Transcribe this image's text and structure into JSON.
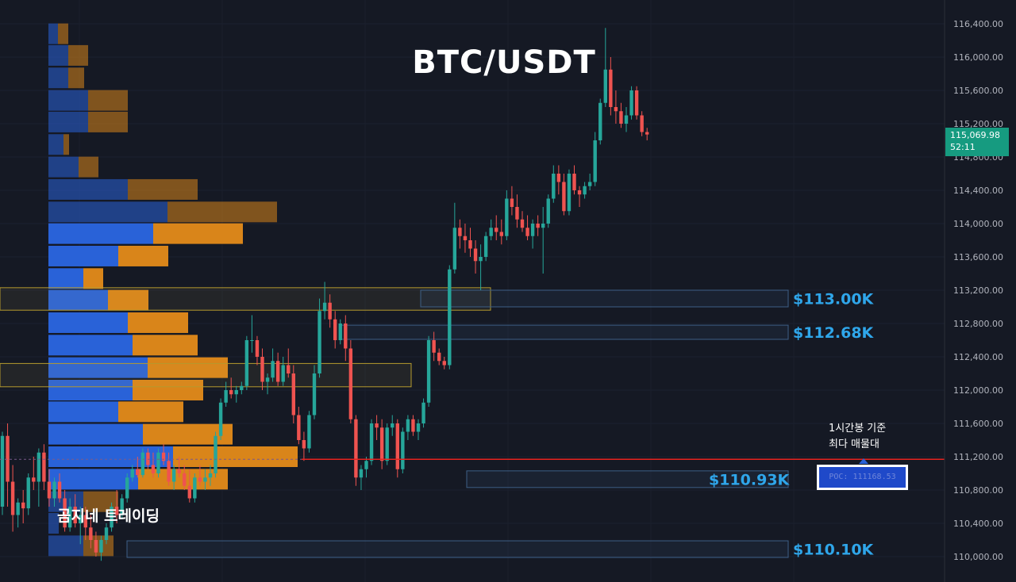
{
  "title": "BTC/USDT",
  "watermark": "곰지네 트레이딩",
  "note": {
    "line1": "1시간봉 기준",
    "line2": "최다 매물대"
  },
  "poc_label": "POC: 111168.53",
  "current_price": {
    "price": "115,069.98",
    "timer": "52:11",
    "color": "#169b80"
  },
  "colors": {
    "up": "#26a69a",
    "down": "#ef5350",
    "level_text": "#2fa6ea",
    "poc_line": "#e8221e",
    "vol_buy": "#2962d8",
    "vol_sell": "#d9851a"
  },
  "chart_data": {
    "type": "candlestick",
    "symbol": "BTC/USDT",
    "timeframe": "1h",
    "ylim": [
      109800,
      116600
    ],
    "y_ticks": [
      "116,400.00",
      "116,000.00",
      "115,600.00",
      "115,200.00",
      "114,800.00",
      "114,400.00",
      "114,000.00",
      "113,600.00",
      "113,200.00",
      "112,800.00",
      "112,400.00",
      "112,000.00",
      "111,600.00",
      "111,200.00",
      "110,800.00",
      "110,400.00",
      "110,000.00"
    ],
    "y_tick_values": [
      116400,
      116000,
      115600,
      115200,
      114800,
      114400,
      114000,
      113600,
      113200,
      112800,
      112400,
      112000,
      111600,
      111200,
      110800,
      110400,
      110000
    ],
    "poc_price": 111168.53,
    "key_levels": [
      {
        "label": "$113.00K",
        "low": 113000,
        "high": 113200
      },
      {
        "label": "$112.68K",
        "low": 112610,
        "high": 112780
      },
      {
        "label": "$110.93K",
        "low": 110830,
        "high": 111030
      },
      {
        "label": "$110.10K",
        "low": 109990,
        "high": 110190
      }
    ],
    "supply_zones": [
      {
        "low": 112960,
        "high": 113230
      },
      {
        "low": 112040,
        "high": 112320
      }
    ],
    "volume_profile": [
      {
        "price": 116280,
        "buy": 12,
        "sell": 13,
        "highlight": false
      },
      {
        "price": 116020,
        "buy": 25,
        "sell": 25,
        "highlight": false
      },
      {
        "price": 115750,
        "buy": 25,
        "sell": 20,
        "highlight": false
      },
      {
        "price": 115480,
        "buy": 50,
        "sell": 50,
        "highlight": false
      },
      {
        "price": 115220,
        "buy": 50,
        "sell": 50,
        "highlight": false
      },
      {
        "price": 114950,
        "buy": 19,
        "sell": 7,
        "highlight": false
      },
      {
        "price": 114680,
        "buy": 38,
        "sell": 25,
        "highlight": false
      },
      {
        "price": 114410,
        "buy": 100,
        "sell": 88,
        "highlight": false
      },
      {
        "price": 114140,
        "buy": 150,
        "sell": 138,
        "highlight": false
      },
      {
        "price": 113880,
        "buy": 132,
        "sell": 113,
        "highlight": true
      },
      {
        "price": 113610,
        "buy": 88,
        "sell": 63,
        "highlight": true
      },
      {
        "price": 113340,
        "buy": 44,
        "sell": 25,
        "highlight": true
      },
      {
        "price": 113080,
        "buy": 75,
        "sell": 51,
        "highlight": true
      },
      {
        "price": 112810,
        "buy": 100,
        "sell": 76,
        "highlight": true
      },
      {
        "price": 112540,
        "buy": 106,
        "sell": 82,
        "highlight": true
      },
      {
        "price": 112270,
        "buy": 125,
        "sell": 101,
        "highlight": true
      },
      {
        "price": 112000,
        "buy": 106,
        "sell": 89,
        "highlight": true
      },
      {
        "price": 111740,
        "buy": 88,
        "sell": 82,
        "highlight": true
      },
      {
        "price": 111470,
        "buy": 119,
        "sell": 113,
        "highlight": true
      },
      {
        "price": 111200,
        "buy": 157,
        "sell": 157,
        "highlight": true
      },
      {
        "price": 110930,
        "buy": 113,
        "sell": 113,
        "highlight": true
      },
      {
        "price": 110660,
        "buy": 44,
        "sell": 44,
        "highlight": false
      },
      {
        "price": 110400,
        "buy": 13,
        "sell": 0,
        "highlight": false
      },
      {
        "price": 110130,
        "buy": 44,
        "sell": 38,
        "highlight": false
      }
    ],
    "candles": [
      [
        110600,
        111500,
        110500,
        111450
      ],
      [
        111450,
        111600,
        110600,
        110900
      ],
      [
        110900,
        111100,
        110300,
        110500
      ],
      [
        110500,
        110700,
        110350,
        110650
      ],
      [
        110650,
        110800,
        110400,
        110580
      ],
      [
        110580,
        111000,
        110500,
        110950
      ],
      [
        110950,
        111200,
        110800,
        110900
      ],
      [
        110900,
        111300,
        110600,
        111250
      ],
      [
        111250,
        111350,
        110800,
        110900
      ],
      [
        110900,
        111050,
        110600,
        110700
      ],
      [
        110700,
        110950,
        110600,
        110900
      ],
      [
        110900,
        111000,
        110650,
        110700
      ],
      [
        110700,
        110800,
        110300,
        110350
      ],
      [
        110350,
        110700,
        110300,
        110600
      ],
      [
        110600,
        110750,
        110350,
        110400
      ],
      [
        110400,
        110600,
        110150,
        110500
      ],
      [
        110500,
        110600,
        110200,
        110350
      ],
      [
        110350,
        110500,
        110100,
        110200
      ],
      [
        110200,
        110300,
        110000,
        110050
      ],
      [
        110050,
        110250,
        109950,
        110200
      ],
      [
        110200,
        110400,
        110150,
        110350
      ],
      [
        110350,
        110650,
        110300,
        110600
      ],
      [
        110600,
        110800,
        110400,
        110500
      ],
      [
        110500,
        110750,
        110450,
        110700
      ],
      [
        110700,
        111000,
        110650,
        110950
      ],
      [
        110950,
        111100,
        110900,
        111050
      ],
      [
        111050,
        111200,
        110950,
        110980
      ],
      [
        110980,
        111300,
        110950,
        111250
      ],
      [
        111250,
        111300,
        111050,
        111100
      ],
      [
        111100,
        111250,
        110950,
        111000
      ],
      [
        111000,
        111300,
        110950,
        111250
      ],
      [
        111250,
        111350,
        111100,
        111150
      ],
      [
        111150,
        111250,
        110850,
        110900
      ],
      [
        110900,
        111100,
        110800,
        111050
      ],
      [
        111050,
        111200,
        110950,
        111000
      ],
      [
        111000,
        111100,
        110800,
        110850
      ],
      [
        110850,
        111050,
        110650,
        110700
      ],
      [
        110700,
        111000,
        110650,
        110950
      ],
      [
        110950,
        111100,
        110850,
        110900
      ],
      [
        110900,
        111050,
        110800,
        110950
      ],
      [
        110950,
        111100,
        110850,
        111000
      ],
      [
        111000,
        111500,
        110950,
        111450
      ],
      [
        111450,
        111900,
        111400,
        111850
      ],
      [
        111850,
        112100,
        111800,
        112000
      ],
      [
        112000,
        112150,
        111900,
        111950
      ],
      [
        111950,
        112050,
        111850,
        112000
      ],
      [
        112000,
        112100,
        111950,
        112050
      ],
      [
        112050,
        112650,
        112000,
        112600
      ],
      [
        112600,
        112900,
        112450,
        112600
      ],
      [
        112600,
        112650,
        112300,
        112400
      ],
      [
        112400,
        112500,
        112000,
        112100
      ],
      [
        112100,
        112200,
        111950,
        112150
      ],
      [
        112150,
        112500,
        112100,
        112350
      ],
      [
        112350,
        112450,
        112050,
        112100
      ],
      [
        112100,
        112400,
        112050,
        112300
      ],
      [
        112300,
        112500,
        112150,
        112200
      ],
      [
        112200,
        112300,
        111600,
        111700
      ],
      [
        111700,
        111800,
        111350,
        111400
      ],
      [
        111400,
        111500,
        111150,
        111300
      ],
      [
        111300,
        111750,
        111250,
        111700
      ],
      [
        111700,
        112300,
        111650,
        112200
      ],
      [
        112200,
        113100,
        112150,
        112950
      ],
      [
        112950,
        113300,
        112850,
        113050
      ],
      [
        113050,
        113150,
        112750,
        112850
      ],
      [
        112850,
        112950,
        112500,
        112600
      ],
      [
        112600,
        112850,
        112550,
        112800
      ],
      [
        112800,
        112900,
        112350,
        112500
      ],
      [
        112500,
        112600,
        111600,
        111650
      ],
      [
        111650,
        111700,
        110850,
        110950
      ],
      [
        110950,
        111100,
        110800,
        111050
      ],
      [
        111050,
        111200,
        110950,
        111150
      ],
      [
        111150,
        111650,
        111100,
        111600
      ],
      [
        111600,
        111700,
        111400,
        111550
      ],
      [
        111550,
        111650,
        111050,
        111150
      ],
      [
        111150,
        111600,
        111100,
        111550
      ],
      [
        111550,
        111700,
        111450,
        111600
      ],
      [
        111600,
        111650,
        110950,
        111050
      ],
      [
        111050,
        111550,
        111000,
        111500
      ],
      [
        111500,
        111700,
        111400,
        111650
      ],
      [
        111650,
        111700,
        111450,
        111500
      ],
      [
        111500,
        111650,
        111400,
        111600
      ],
      [
        111600,
        111900,
        111550,
        111850
      ],
      [
        111850,
        112650,
        111800,
        112600
      ],
      [
        112600,
        112700,
        112350,
        112450
      ],
      [
        112450,
        112500,
        112300,
        112350
      ],
      [
        112350,
        112400,
        112250,
        112300
      ],
      [
        112300,
        113500,
        112250,
        113450
      ],
      [
        113450,
        114250,
        113400,
        113950
      ],
      [
        113950,
        114050,
        113700,
        113850
      ],
      [
        113850,
        114000,
        113650,
        113800
      ],
      [
        113800,
        113950,
        113600,
        113700
      ],
      [
        113700,
        113800,
        113400,
        113550
      ],
      [
        113550,
        113750,
        113200,
        113600
      ],
      [
        113600,
        113900,
        113550,
        113850
      ],
      [
        113850,
        114050,
        113800,
        113950
      ],
      [
        113950,
        114100,
        113800,
        113900
      ],
      [
        113900,
        114050,
        113750,
        113850
      ],
      [
        113850,
        114400,
        113800,
        114300
      ],
      [
        114300,
        114450,
        114100,
        114200
      ],
      [
        114200,
        114350,
        113950,
        114050
      ],
      [
        114050,
        114150,
        113900,
        113950
      ],
      [
        113950,
        114100,
        113800,
        113850
      ],
      [
        113850,
        114050,
        113700,
        114000
      ],
      [
        114000,
        114100,
        113850,
        113950
      ],
      [
        113950,
        114200,
        113400,
        114000
      ],
      [
        114000,
        114350,
        113950,
        114300
      ],
      [
        114300,
        114700,
        114250,
        114600
      ],
      [
        114600,
        114700,
        114350,
        114500
      ],
      [
        114500,
        114600,
        114100,
        114150
      ],
      [
        114150,
        114650,
        114100,
        114600
      ],
      [
        114600,
        114700,
        114350,
        114400
      ],
      [
        114400,
        114450,
        114200,
        114350
      ],
      [
        114350,
        114500,
        114300,
        114450
      ],
      [
        114450,
        114600,
        114400,
        114500
      ],
      [
        114500,
        115100,
        114450,
        115000
      ],
      [
        115000,
        115500,
        114950,
        115450
      ],
      [
        115450,
        116350,
        115400,
        115850
      ],
      [
        115850,
        116000,
        115300,
        115400
      ],
      [
        115400,
        115600,
        115200,
        115350
      ],
      [
        115350,
        115450,
        115150,
        115200
      ],
      [
        115200,
        115400,
        115100,
        115300
      ],
      [
        115300,
        115650,
        115250,
        115600
      ],
      [
        115600,
        115650,
        115250,
        115300
      ],
      [
        115300,
        115350,
        115050,
        115100
      ],
      [
        115100,
        115150,
        115000,
        115070
      ]
    ]
  }
}
